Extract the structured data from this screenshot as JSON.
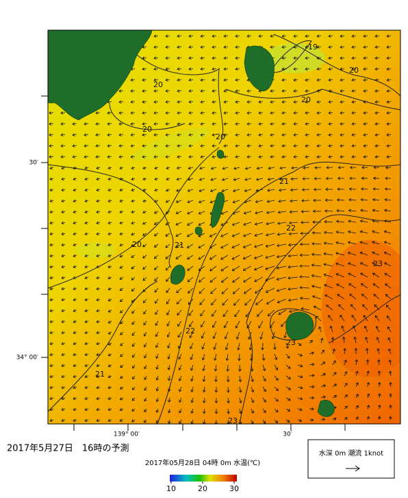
{
  "map": {
    "title": "2017年5月27日　16時の予測",
    "subtitle": "2017年05月28日 04時 0m 水温(℃)",
    "legend_text": "水深 0m 潮流 1knot",
    "lat_labels": [
      "30′",
      "34° 00′"
    ],
    "lon_labels": [
      "139° 00′",
      "30′"
    ],
    "contour_labels": [
      "19",
      "20",
      "20",
      "20",
      "20",
      "20",
      "21",
      "22",
      "20",
      "21",
      "23",
      "22",
      "23",
      "21",
      "23"
    ],
    "colorbar": {
      "lim": [
        10,
        30
      ],
      "ticks": [
        10,
        20,
        30
      ]
    }
  }
}
